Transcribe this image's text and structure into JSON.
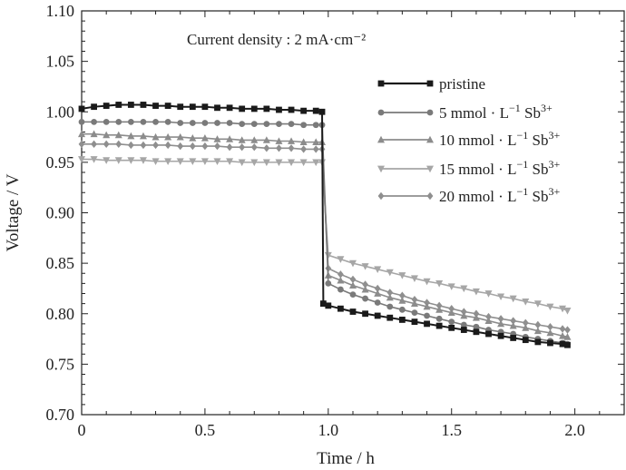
{
  "chart_data": {
    "type": "line",
    "title": "",
    "annotation": "Current density : 2 mA·cm⁻²",
    "xlabel": "Time / h",
    "ylabel": "Voltage / V",
    "xlim": [
      0,
      2.2
    ],
    "ylim": [
      0.7,
      1.1
    ],
    "xticks": [
      0,
      0.5,
      1.0,
      1.5,
      2.0
    ],
    "xtick_labels": [
      "0",
      "0.5",
      "1.0",
      "1.5",
      "2.0"
    ],
    "yticks": [
      0.7,
      0.75,
      0.8,
      0.85,
      0.9,
      0.95,
      1.0,
      1.05,
      1.1
    ],
    "ytick_labels": [
      "0.70",
      "0.75",
      "0.80",
      "0.85",
      "0.90",
      "0.95",
      "1.00",
      "1.05",
      "1.10"
    ],
    "legend_position": "top-right",
    "series": [
      {
        "name": "pristine",
        "label_main": "pristine",
        "label_sup": "",
        "color": "#1a1a1a",
        "marker": "square",
        "x": [
          0,
          0.05,
          0.1,
          0.15,
          0.2,
          0.25,
          0.3,
          0.35,
          0.4,
          0.45,
          0.5,
          0.55,
          0.6,
          0.65,
          0.7,
          0.75,
          0.8,
          0.85,
          0.9,
          0.95,
          0.975,
          0.98,
          1.0,
          1.05,
          1.1,
          1.15,
          1.2,
          1.25,
          1.3,
          1.35,
          1.4,
          1.45,
          1.5,
          1.55,
          1.6,
          1.65,
          1.7,
          1.75,
          1.8,
          1.85,
          1.9,
          1.95,
          1.97
        ],
        "y": [
          1.003,
          1.005,
          1.006,
          1.007,
          1.007,
          1.007,
          1.006,
          1.006,
          1.005,
          1.005,
          1.005,
          1.004,
          1.004,
          1.003,
          1.003,
          1.003,
          1.002,
          1.002,
          1.001,
          1.001,
          1.0,
          0.81,
          0.808,
          0.805,
          0.802,
          0.8,
          0.798,
          0.796,
          0.794,
          0.792,
          0.79,
          0.788,
          0.786,
          0.784,
          0.782,
          0.78,
          0.778,
          0.776,
          0.774,
          0.772,
          0.771,
          0.77,
          0.769
        ]
      },
      {
        "name": "5 mmol · L⁻¹ Sb³⁺",
        "label_main": "5 mmol · L",
        "label_sup": "−1",
        "label_tail": " Sb",
        "label_sup2": "3+",
        "color": "#7a7a7a",
        "marker": "circle",
        "x": [
          0,
          0.05,
          0.1,
          0.15,
          0.2,
          0.25,
          0.3,
          0.35,
          0.4,
          0.45,
          0.5,
          0.55,
          0.6,
          0.65,
          0.7,
          0.75,
          0.8,
          0.85,
          0.9,
          0.95,
          0.975,
          1.0,
          1.05,
          1.1,
          1.15,
          1.2,
          1.25,
          1.3,
          1.35,
          1.4,
          1.45,
          1.5,
          1.55,
          1.6,
          1.65,
          1.7,
          1.75,
          1.8,
          1.85,
          1.9,
          1.95,
          1.97
        ],
        "y": [
          0.99,
          0.99,
          0.99,
          0.99,
          0.99,
          0.99,
          0.99,
          0.99,
          0.989,
          0.989,
          0.989,
          0.989,
          0.989,
          0.988,
          0.988,
          0.988,
          0.988,
          0.988,
          0.987,
          0.987,
          0.987,
          0.83,
          0.824,
          0.819,
          0.815,
          0.811,
          0.807,
          0.804,
          0.801,
          0.798,
          0.795,
          0.792,
          0.789,
          0.787,
          0.784,
          0.782,
          0.78,
          0.777,
          0.775,
          0.773,
          0.771,
          0.77
        ]
      },
      {
        "name": "10 mmol · L⁻¹ Sb³⁺",
        "label_main": "10 mmol · L",
        "label_sup": "−1",
        "label_tail": " Sb",
        "label_sup2": "3+",
        "color": "#8c8c8c",
        "marker": "triangle-up",
        "x": [
          0,
          0.05,
          0.1,
          0.15,
          0.2,
          0.25,
          0.3,
          0.35,
          0.4,
          0.45,
          0.5,
          0.55,
          0.6,
          0.65,
          0.7,
          0.75,
          0.8,
          0.85,
          0.9,
          0.95,
          0.975,
          1.0,
          1.05,
          1.1,
          1.15,
          1.2,
          1.25,
          1.3,
          1.35,
          1.4,
          1.45,
          1.5,
          1.55,
          1.6,
          1.65,
          1.7,
          1.75,
          1.8,
          1.85,
          1.9,
          1.95,
          1.97
        ],
        "y": [
          0.978,
          0.978,
          0.977,
          0.977,
          0.976,
          0.976,
          0.975,
          0.975,
          0.975,
          0.974,
          0.974,
          0.973,
          0.973,
          0.972,
          0.972,
          0.972,
          0.971,
          0.971,
          0.97,
          0.97,
          0.97,
          0.838,
          0.833,
          0.828,
          0.824,
          0.82,
          0.816,
          0.813,
          0.81,
          0.807,
          0.804,
          0.801,
          0.798,
          0.796,
          0.793,
          0.79,
          0.788,
          0.786,
          0.783,
          0.781,
          0.778,
          0.777
        ]
      },
      {
        "name": "15 mmol · L⁻¹ Sb³⁺",
        "label_main": "15 mmol · L",
        "label_sup": "−1",
        "label_tail": " Sb",
        "label_sup2": "3+",
        "color": "#a6a6a6",
        "marker": "triangle-down",
        "x": [
          0,
          0.05,
          0.1,
          0.15,
          0.2,
          0.25,
          0.3,
          0.35,
          0.4,
          0.45,
          0.5,
          0.55,
          0.6,
          0.65,
          0.7,
          0.75,
          0.8,
          0.85,
          0.9,
          0.95,
          0.975,
          1.0,
          1.05,
          1.1,
          1.15,
          1.2,
          1.25,
          1.3,
          1.35,
          1.4,
          1.45,
          1.5,
          1.55,
          1.6,
          1.65,
          1.7,
          1.75,
          1.8,
          1.85,
          1.9,
          1.95,
          1.97
        ],
        "y": [
          0.953,
          0.953,
          0.952,
          0.952,
          0.952,
          0.952,
          0.951,
          0.951,
          0.951,
          0.951,
          0.951,
          0.951,
          0.951,
          0.95,
          0.95,
          0.95,
          0.95,
          0.95,
          0.95,
          0.95,
          0.95,
          0.858,
          0.854,
          0.85,
          0.847,
          0.844,
          0.841,
          0.838,
          0.835,
          0.832,
          0.83,
          0.827,
          0.825,
          0.822,
          0.82,
          0.817,
          0.815,
          0.812,
          0.81,
          0.807,
          0.805,
          0.803
        ]
      },
      {
        "name": "20 mmol · L⁻¹ Sb³⁺",
        "label_main": "20 mmol · L",
        "label_sup": "−1",
        "label_tail": " Sb",
        "label_sup2": "3+",
        "color": "#8f8f8f",
        "marker": "diamond",
        "x": [
          0,
          0.05,
          0.1,
          0.15,
          0.2,
          0.25,
          0.3,
          0.35,
          0.4,
          0.45,
          0.5,
          0.55,
          0.6,
          0.65,
          0.7,
          0.75,
          0.8,
          0.85,
          0.9,
          0.95,
          0.975,
          1.0,
          1.05,
          1.1,
          1.15,
          1.2,
          1.25,
          1.3,
          1.35,
          1.4,
          1.45,
          1.5,
          1.55,
          1.6,
          1.65,
          1.7,
          1.75,
          1.8,
          1.85,
          1.9,
          1.95,
          1.97
        ],
        "y": [
          0.968,
          0.968,
          0.968,
          0.968,
          0.967,
          0.967,
          0.967,
          0.967,
          0.966,
          0.966,
          0.966,
          0.966,
          0.965,
          0.965,
          0.965,
          0.964,
          0.964,
          0.964,
          0.963,
          0.963,
          0.963,
          0.845,
          0.839,
          0.834,
          0.829,
          0.825,
          0.821,
          0.818,
          0.814,
          0.811,
          0.808,
          0.805,
          0.802,
          0.8,
          0.797,
          0.795,
          0.793,
          0.791,
          0.789,
          0.787,
          0.785,
          0.784
        ]
      }
    ]
  }
}
